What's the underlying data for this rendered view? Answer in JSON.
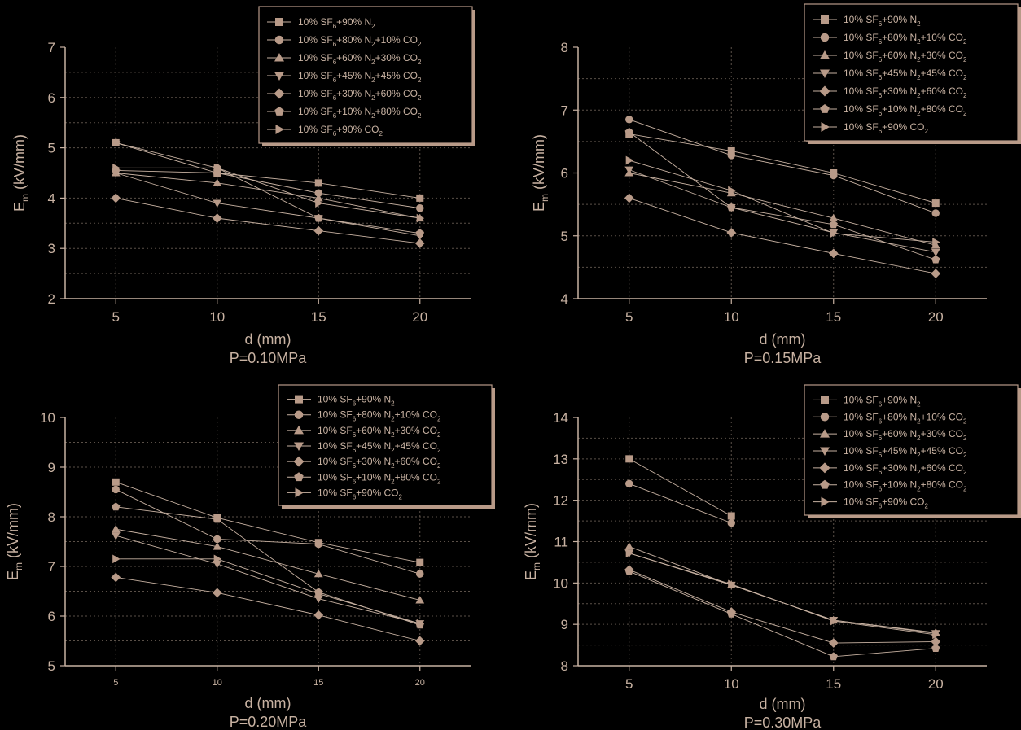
{
  "colors": {
    "background": "#000000",
    "ink": "#c8b2a2",
    "marker": "#b89a88",
    "grid": "#5a5048",
    "legend_frame": "#b89a88"
  },
  "marker_shapes": [
    "square",
    "circle",
    "triangle-up",
    "triangle-down",
    "diamond",
    "pentagon",
    "triangle-right"
  ],
  "chart_data": [
    {
      "type": "line",
      "title": "P=0.10MPa",
      "xlabel": "d (mm)",
      "ylabel": "E_m (kV/mm)",
      "x": [
        5,
        10,
        15,
        20
      ],
      "x_ticks": [
        "5",
        "10",
        "15",
        "20"
      ],
      "y_ticks": [
        "2",
        "3",
        "4",
        "5",
        "6",
        "7"
      ],
      "xlim": [
        2.5,
        22.5
      ],
      "ylim": [
        2,
        7
      ],
      "grid": true,
      "legend": "top-right",
      "series": [
        {
          "name": "10% SF6+90% N2",
          "values": [
            5.1,
            4.5,
            4.3,
            4.0
          ]
        },
        {
          "name": "10% SF6+80% N2+10% CO2",
          "values": [
            4.55,
            4.5,
            4.1,
            3.8
          ]
        },
        {
          "name": "10% SF6+60% N2+30% CO2",
          "values": [
            4.5,
            4.3,
            4.0,
            3.6
          ]
        },
        {
          "name": "10% SF6+45% N2+45% CO2",
          "values": [
            4.5,
            3.9,
            3.6,
            3.25
          ]
        },
        {
          "name": "10% SF6+30% N2+60% CO2",
          "values": [
            4.0,
            3.6,
            3.35,
            3.1
          ]
        },
        {
          "name": "10% SF6+10% N2+80% CO2",
          "values": [
            5.1,
            4.6,
            3.6,
            3.3
          ]
        },
        {
          "name": "10% SF6+90% CO2",
          "values": [
            4.6,
            4.6,
            3.9,
            3.6
          ]
        }
      ]
    },
    {
      "type": "line",
      "title": "P=0.15MPa",
      "xlabel": "d (mm)",
      "ylabel": "E_m (kV/mm)",
      "x": [
        5,
        10,
        15,
        20
      ],
      "x_ticks": [
        "5",
        "10",
        "15",
        "20"
      ],
      "y_ticks": [
        "4",
        "5",
        "6",
        "7",
        "8"
      ],
      "xlim": [
        2.5,
        22.5
      ],
      "ylim": [
        4,
        8
      ],
      "grid": true,
      "legend": "top-right",
      "series": [
        {
          "name": "10% SF6+90% N2",
          "values": [
            6.62,
            6.35,
            6.0,
            5.52
          ]
        },
        {
          "name": "10% SF6+80% N2+10% CO2",
          "values": [
            6.85,
            6.28,
            5.96,
            5.36
          ]
        },
        {
          "name": "10% SF6+60% N2+30% CO2",
          "values": [
            6.0,
            5.68,
            5.28,
            4.85
          ]
        },
        {
          "name": "10% SF6+45% N2+45% CO2",
          "values": [
            6.05,
            5.45,
            5.05,
            4.74
          ]
        },
        {
          "name": "10% SF6+30% N2+60% CO2",
          "values": [
            5.6,
            5.05,
            4.72,
            4.4
          ]
        },
        {
          "name": "10% SF6+10% N2+80% CO2",
          "values": [
            6.65,
            5.45,
            5.18,
            4.62
          ]
        },
        {
          "name": "10% SF6+90% CO2",
          "values": [
            6.2,
            5.72,
            5.04,
            4.9
          ]
        }
      ]
    },
    {
      "type": "line",
      "title": "P=0.20MPa",
      "xlabel": "d (mm)",
      "ylabel": "E_m (kV/mm)",
      "x": [
        5,
        10,
        15,
        20
      ],
      "x_ticks": [
        "5",
        "10",
        "15",
        "20"
      ],
      "y_ticks": [
        "5",
        "6",
        "7",
        "8",
        "9",
        "10"
      ],
      "xlim": [
        2.5,
        22.5
      ],
      "ylim": [
        5,
        10
      ],
      "grid": true,
      "legend": "top-right",
      "series": [
        {
          "name": "10% SF6+90% N2",
          "values": [
            8.7,
            7.98,
            7.48,
            7.08
          ]
        },
        {
          "name": "10% SF6+80% N2+10% CO2",
          "values": [
            8.55,
            7.55,
            7.45,
            6.85
          ]
        },
        {
          "name": "10% SF6+60% N2+30% CO2",
          "values": [
            7.75,
            7.4,
            6.85,
            6.32
          ]
        },
        {
          "name": "10% SF6+45% N2+45% CO2",
          "values": [
            7.62,
            7.05,
            6.35,
            5.85
          ]
        },
        {
          "name": "10% SF6+30% N2+60% CO2",
          "values": [
            6.78,
            6.47,
            6.02,
            5.5
          ]
        },
        {
          "name": "10% SF6+10% N2+80% CO2",
          "values": [
            8.2,
            7.95,
            6.48,
            5.82
          ]
        },
        {
          "name": "10% SF6+90% CO2",
          "values": [
            7.15,
            7.15,
            6.45,
            5.85
          ]
        }
      ]
    },
    {
      "type": "line",
      "title": "P=0.30MPa",
      "xlabel": "d (mm)",
      "ylabel": "E_m (kV/mm)",
      "x": [
        5,
        10,
        15,
        20
      ],
      "x_ticks": [
        "5",
        "10",
        "15",
        "20"
      ],
      "y_ticks": [
        "8",
        "9",
        "10",
        "11",
        "12",
        "13",
        "14"
      ],
      "xlim": [
        2.5,
        22.5
      ],
      "ylim": [
        8,
        14
      ],
      "grid": true,
      "legend": "top-right",
      "series": [
        {
          "name": "10% SF6+90% N2",
          "values": [
            13.0,
            11.62,
            null,
            null
          ]
        },
        {
          "name": "10% SF6+80% N2+10% CO2",
          "values": [
            12.4,
            11.45,
            null,
            null
          ]
        },
        {
          "name": "10% SF6+60% N2+30% CO2",
          "values": [
            10.88,
            9.95,
            9.1,
            8.8
          ]
        },
        {
          "name": "10% SF6+45% N2+45% CO2",
          "values": [
            10.72,
            9.95,
            9.1,
            8.78
          ]
        },
        {
          "name": "10% SF6+30% N2+60% CO2",
          "values": [
            10.32,
            9.3,
            8.55,
            8.58
          ]
        },
        {
          "name": "10% SF6+10% N2+80% CO2",
          "values": [
            10.28,
            9.25,
            8.22,
            8.42
          ]
        },
        {
          "name": "10% SF6+90% CO2",
          "values": [
            10.72,
            9.97,
            9.08,
            8.75
          ]
        }
      ]
    }
  ]
}
